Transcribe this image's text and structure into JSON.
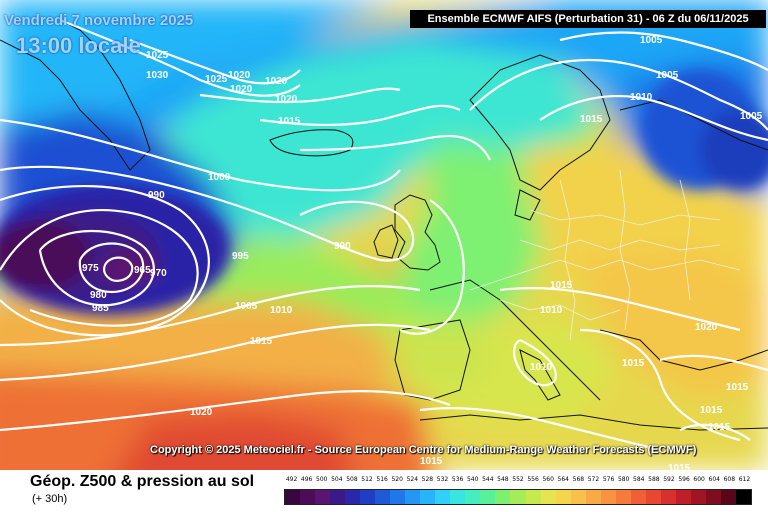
{
  "header": {
    "date": "Vendredi 7 novembre 2025",
    "time": "13:00 locale",
    "model": "Ensemble ECMWF AIFS  (Perturbation 31)  -  06 Z du 06/11/2025"
  },
  "map": {
    "copyright": "Copyright © 2025 Meteociel.fr - Source European Centre for Medium-Range Weather Forecasts (ECMWF)",
    "pressure_labels": [
      "1025",
      "1030",
      "1020",
      "1025",
      "1020",
      "1020",
      "1020",
      "1015",
      "1000",
      "990",
      "990",
      "995",
      "975",
      "965",
      "970",
      "980",
      "985",
      "1005",
      "1010",
      "1015",
      "1020",
      "1005",
      "1005",
      "1010",
      "1015",
      "1005",
      "1015",
      "1010",
      "1010",
      "1020",
      "1015",
      "1015",
      "1015",
      "1015",
      "1015",
      "1015"
    ]
  },
  "footer": {
    "title": "Géop. Z500 & pression au sol",
    "subtitle": "(+ 30h)",
    "legend_ticks": [
      "492",
      "496",
      "500",
      "504",
      "508",
      "512",
      "516",
      "520",
      "524",
      "528",
      "532",
      "536",
      "540",
      "544",
      "548",
      "552",
      "556",
      "560",
      "564",
      "568",
      "572",
      "576",
      "580",
      "584",
      "588",
      "592",
      "596",
      "600",
      "604",
      "608",
      "612"
    ],
    "legend_colors": [
      "#3a0640",
      "#4b0c58",
      "#5a1570",
      "#3a1a8a",
      "#2a28a8",
      "#1e3ec4",
      "#1c5ad8",
      "#1e78ea",
      "#2496f6",
      "#28b4fa",
      "#30d0f8",
      "#3ae4e0",
      "#44eec0",
      "#58f098",
      "#7cf070",
      "#a4ec58",
      "#c8e850",
      "#e6e450",
      "#f4d64c",
      "#f8c24a",
      "#f8aa44",
      "#f89440",
      "#f67a3a",
      "#f06034",
      "#e84830",
      "#d8302c",
      "#c01e28",
      "#a01424",
      "#800c20",
      "#5a061a",
      "#000000"
    ]
  }
}
